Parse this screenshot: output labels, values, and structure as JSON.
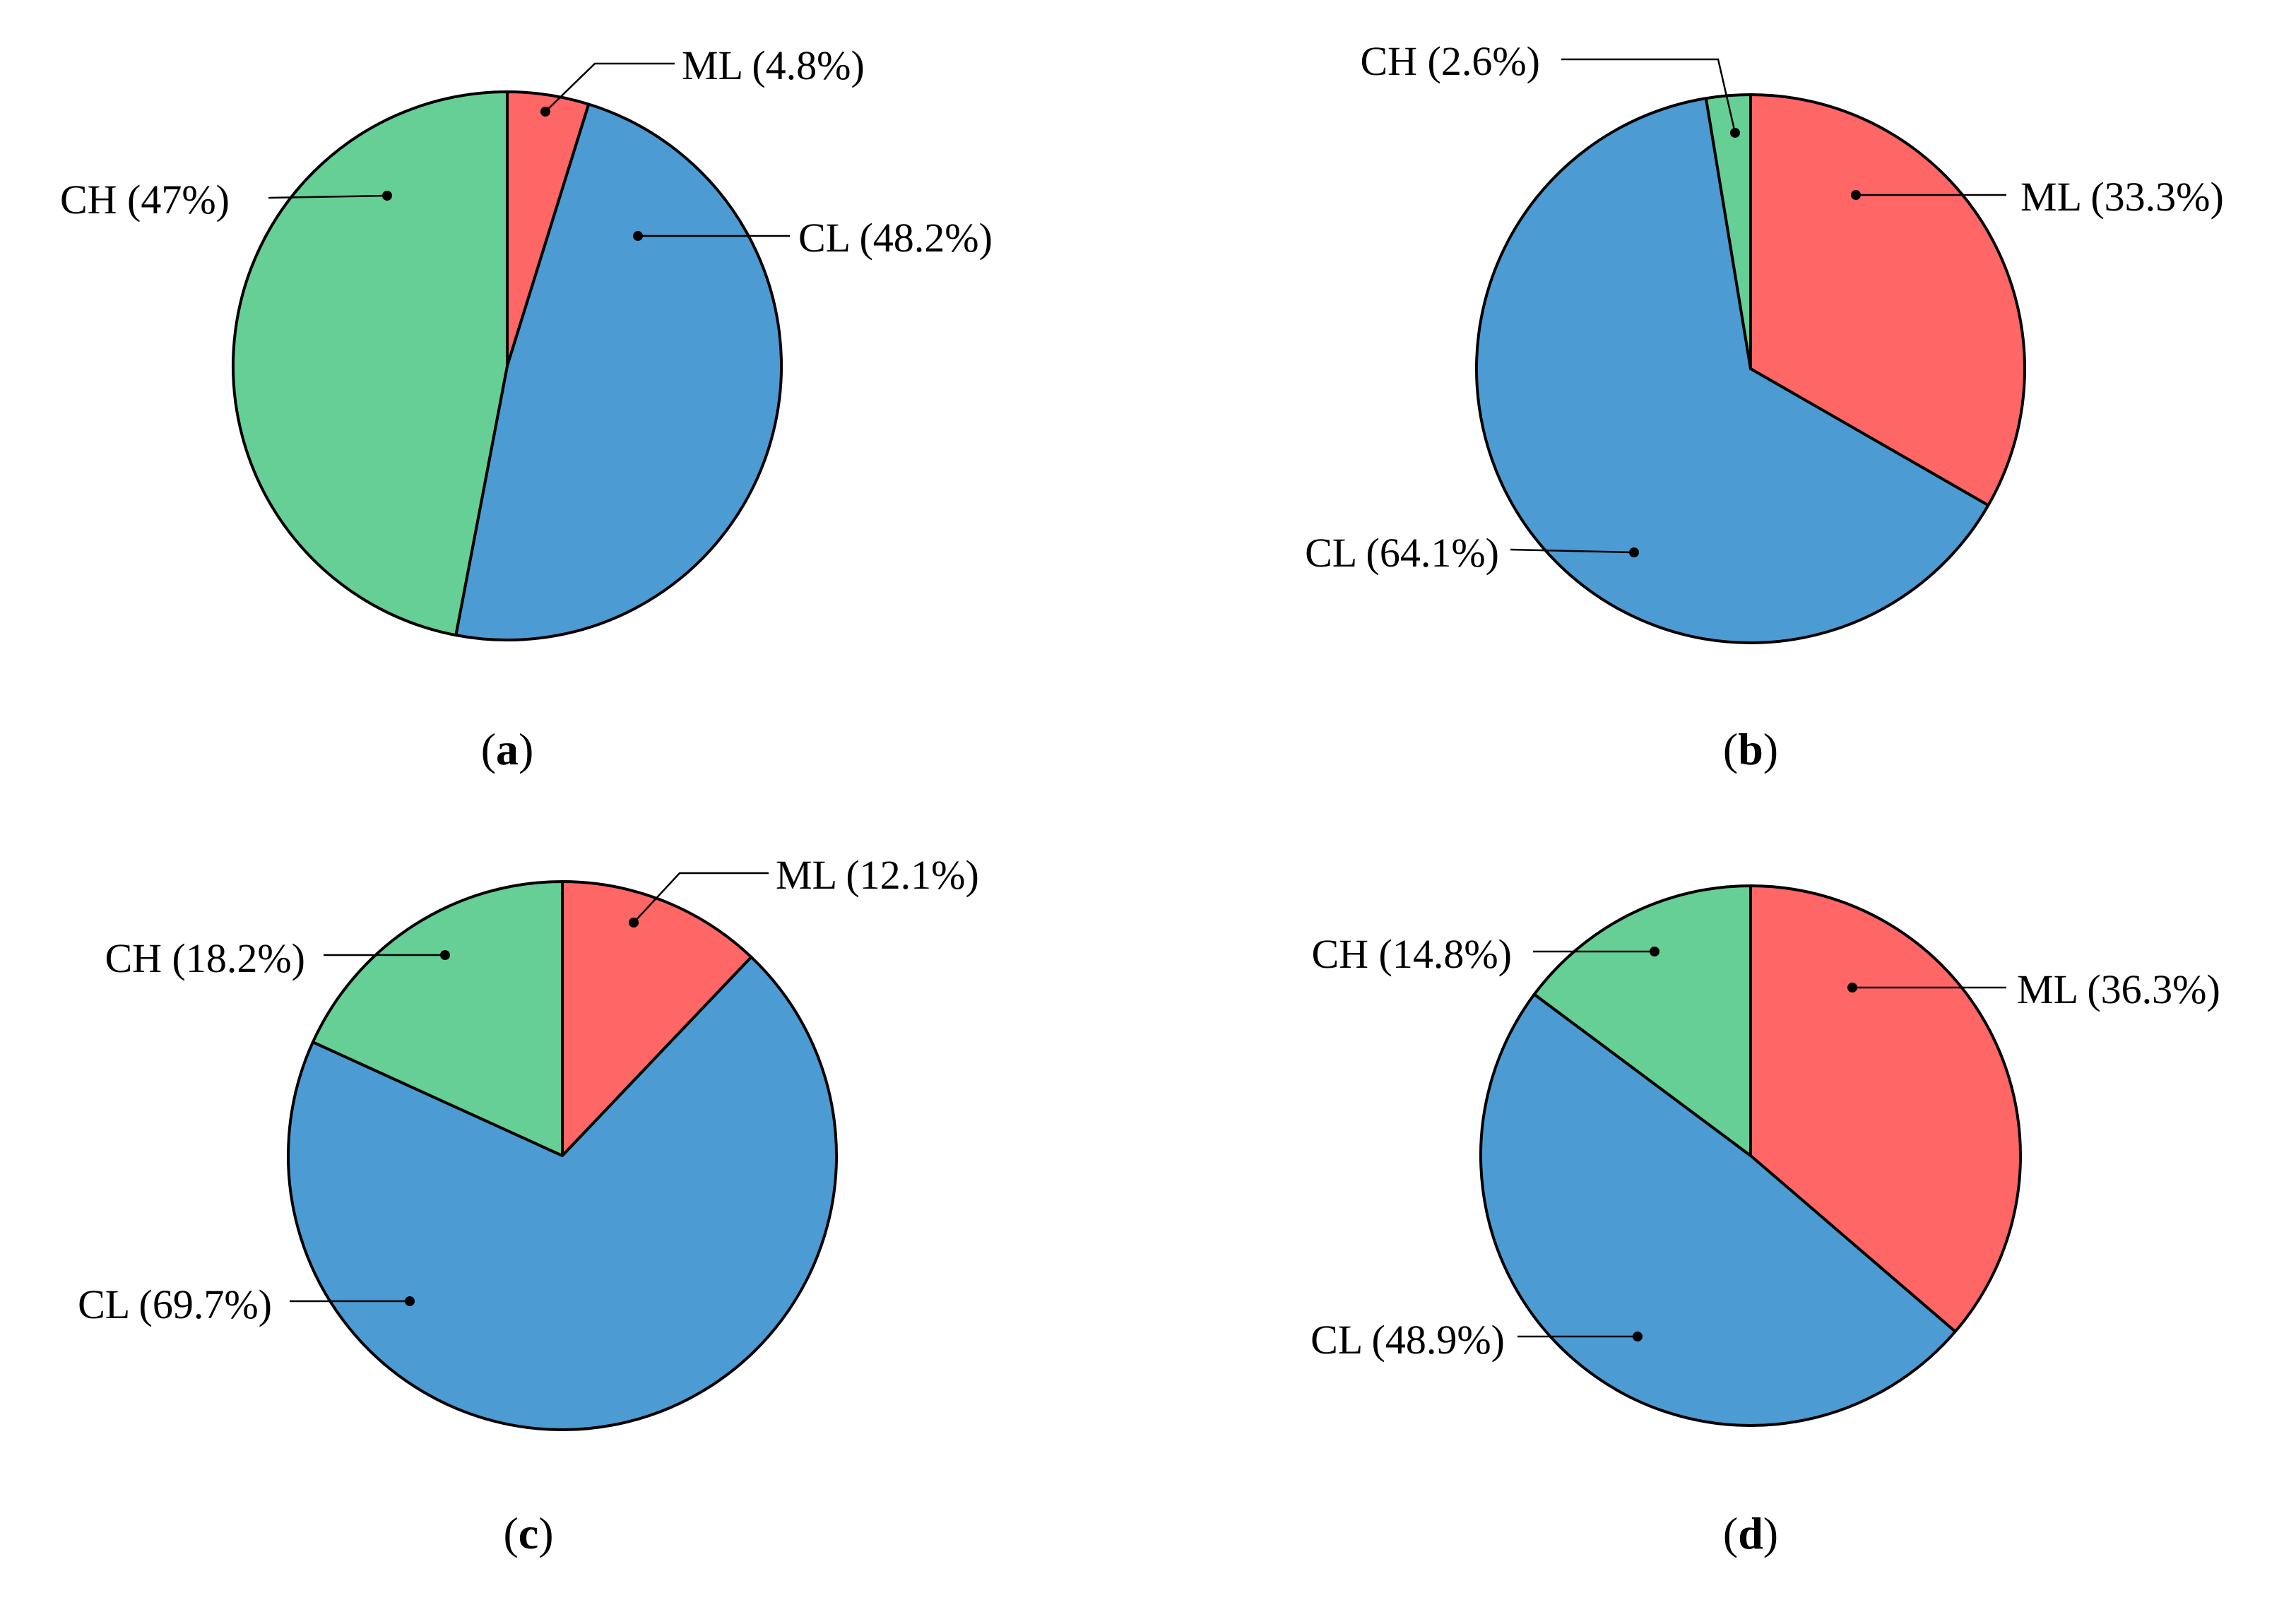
{
  "colors": {
    "ML": "#ff6666",
    "CL": "#4d9bd3",
    "CH": "#66cf95"
  },
  "chart_data": [
    {
      "type": "pie",
      "panel": "a",
      "slices": [
        {
          "name": "ML",
          "value": 4.8,
          "label": "ML (4.8%)"
        },
        {
          "name": "CL",
          "value": 48.2,
          "label": "CL (48.2%)"
        },
        {
          "name": "CH",
          "value": 47,
          "label": "CH (47%)"
        }
      ]
    },
    {
      "type": "pie",
      "panel": "b",
      "slices": [
        {
          "name": "ML",
          "value": 33.3,
          "label": "ML (33.3%)"
        },
        {
          "name": "CL",
          "value": 64.1,
          "label": "CL (64.1%)"
        },
        {
          "name": "CH",
          "value": 2.6,
          "label": "CH (2.6%)"
        }
      ]
    },
    {
      "type": "pie",
      "panel": "c",
      "slices": [
        {
          "name": "ML",
          "value": 12.1,
          "label": "ML (12.1%)"
        },
        {
          "name": "CL",
          "value": 69.7,
          "label": "CL (69.7%)"
        },
        {
          "name": "CH",
          "value": 18.2,
          "label": "CH (18.2%)"
        }
      ]
    },
    {
      "type": "pie",
      "panel": "d",
      "slices": [
        {
          "name": "ML",
          "value": 36.3,
          "label": "ML (36.3%)"
        },
        {
          "name": "CL",
          "value": 48.9,
          "label": "CL (48.9%)"
        },
        {
          "name": "CH",
          "value": 14.8,
          "label": "CH (14.8%)"
        }
      ]
    }
  ]
}
